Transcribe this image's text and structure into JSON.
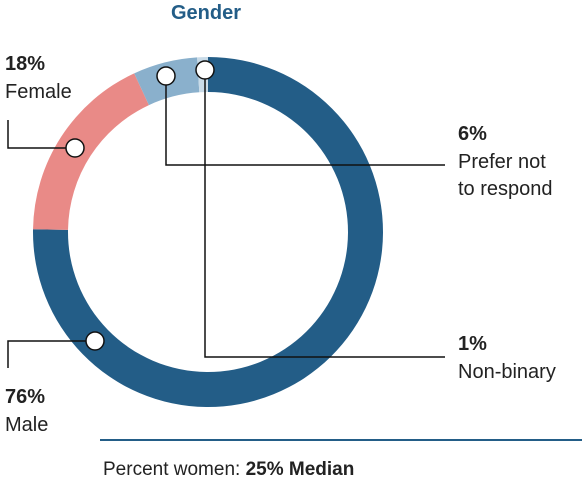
{
  "chart_data": {
    "type": "donut",
    "title": "Gender",
    "categories": [
      "Male",
      "Female",
      "Prefer not to respond",
      "Non-binary"
    ],
    "values": [
      76,
      18,
      6,
      1
    ],
    "value_labels": [
      "76%",
      "18%",
      "6%",
      "1%"
    ],
    "colors": [
      "#235d87",
      "#e98a87",
      "#8ab0cc",
      "#c9dbe8"
    ],
    "footer": {
      "label": "Percent women:",
      "highlight": "25% Median"
    }
  }
}
